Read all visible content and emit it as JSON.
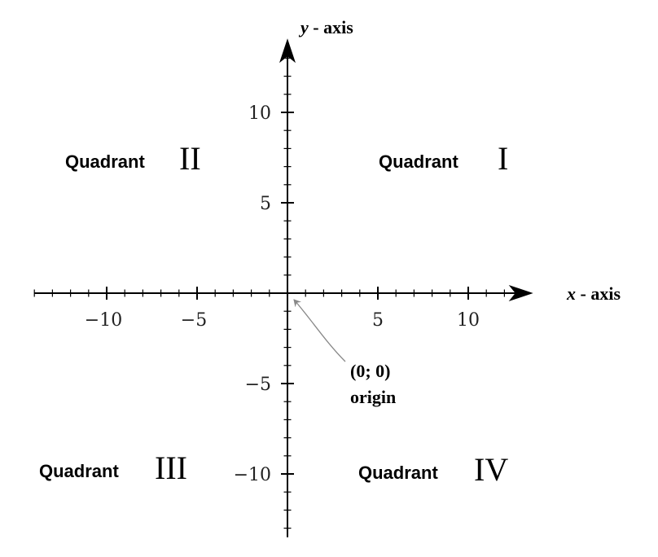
{
  "chart_data": {
    "type": "diagram",
    "axes": {
      "x": {
        "title_var": "x",
        "title_rest": " - axis",
        "range": [
          -14,
          13.5
        ],
        "major_ticks": [
          -10,
          -5,
          5,
          10
        ],
        "major_labels": [
          "−10",
          "−5",
          "5",
          "10"
        ],
        "minor_step": 1
      },
      "y": {
        "title_var": "y",
        "title_rest": " - axis",
        "range": [
          -13.5,
          14
        ],
        "major_ticks": [
          10,
          5,
          -5,
          -10
        ],
        "major_labels": [
          "10",
          "5",
          "−5",
          "−10"
        ],
        "minor_step": 1
      }
    },
    "quadrants": [
      {
        "word": "Quadrant",
        "numeral": "II"
      },
      {
        "word": "Quadrant",
        "numeral": "I"
      },
      {
        "word": "Quadrant",
        "numeral": "III"
      },
      {
        "word": "Quadrant",
        "numeral": "IV"
      }
    ],
    "origin": {
      "coords_label": "(0; 0)",
      "name_label": "origin",
      "point": [
        0,
        0
      ]
    },
    "colors": {
      "axis": "#000000",
      "pointer": "#888888"
    }
  }
}
